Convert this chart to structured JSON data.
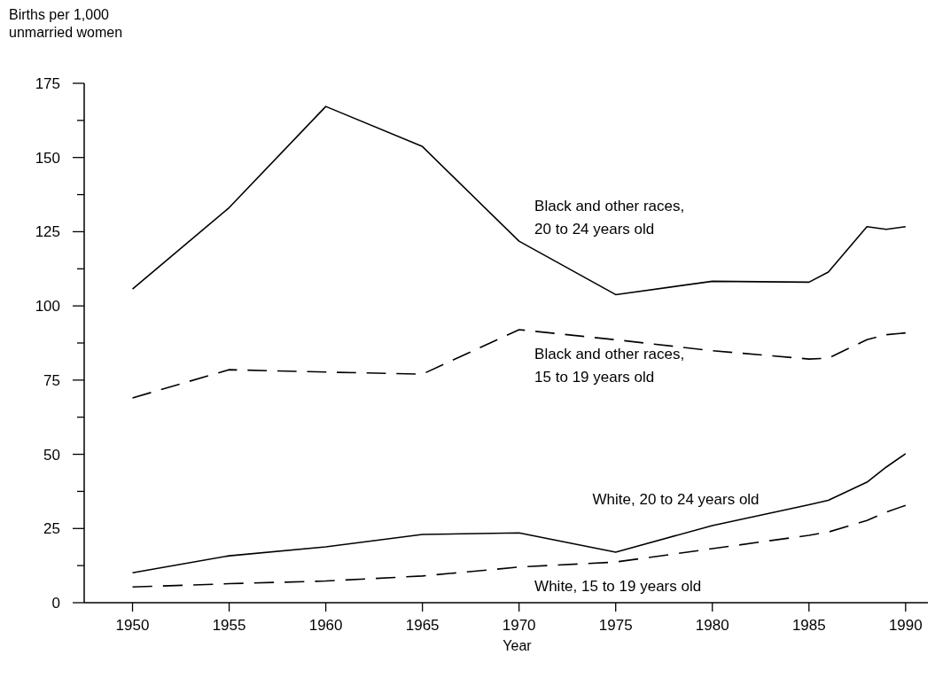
{
  "chart_data": {
    "type": "line",
    "xlabel": "Year",
    "ylabel": "Births per 1,000 unmarried women",
    "x": [
      1950,
      1955,
      1960,
      1965,
      1970,
      1975,
      1980,
      1985,
      1986,
      1988,
      1989,
      1990
    ],
    "series": [
      {
        "name": "Black and other races, 20 to 24 years old",
        "color": "#000000",
        "line_style": "solid",
        "values": [
          105.7,
          133.1,
          167.2,
          153.7,
          121.8,
          103.8,
          108.3,
          108,
          111.4,
          126.7,
          125.8,
          126.7
        ]
      },
      {
        "name": "Black and other races, 15 to 19 years old",
        "color": "#000000",
        "line_style": "dashed",
        "values": [
          69,
          78.5,
          77.7,
          77,
          92,
          88.6,
          84.9,
          82.1,
          82.4,
          88.6,
          90.3,
          90.9
        ]
      },
      {
        "name": "White, 20 to 24 years old",
        "color": "#000000",
        "line_style": "solid",
        "values": [
          10.1,
          15.8,
          18.8,
          23,
          23.5,
          17,
          26,
          33,
          34.5,
          40.6,
          45.7,
          50.2
        ]
      },
      {
        "name": "White, 15 to 19 years old",
        "color": "#000000",
        "line_style": "dashed",
        "values": [
          5.3,
          6.4,
          7.3,
          9,
          12,
          13.7,
          18.2,
          22.7,
          23.8,
          27.7,
          30.5,
          32.8
        ]
      }
    ],
    "xlim": [
      1947.5,
      1991.2
    ],
    "xticks": [
      1950,
      1955,
      1960,
      1965,
      1970,
      1975,
      1980,
      1985,
      1990
    ],
    "ylim": [
      0,
      175
    ],
    "yticks": [
      0,
      {
        "value": 12.5,
        "label": null
      },
      25,
      {
        "value": 37.5,
        "label": null
      },
      50,
      {
        "value": 62.5,
        "label": null
      },
      75,
      {
        "value": 87.5,
        "label": null
      },
      100,
      {
        "value": 112.5,
        "label": null
      },
      125,
      {
        "value": 137.5,
        "label": null
      },
      150,
      {
        "value": 162.5,
        "label": null
      },
      175
    ],
    "grid": false,
    "marker": "none"
  }
}
